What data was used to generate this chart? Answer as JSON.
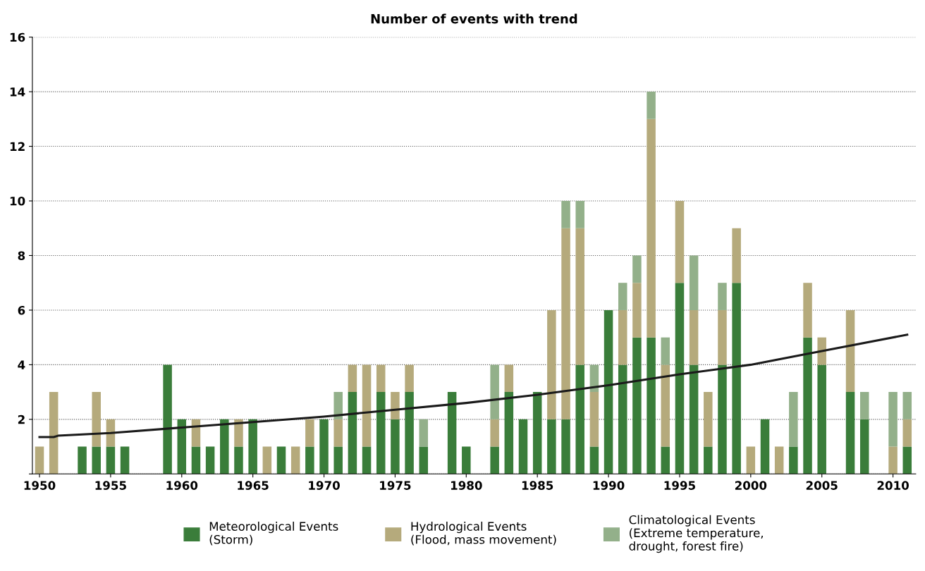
{
  "chart_data": {
    "type": "bar",
    "title": "Number of events with trend",
    "stacked": true,
    "x": [
      1950,
      1951,
      1952,
      1953,
      1954,
      1955,
      1956,
      1957,
      1958,
      1959,
      1960,
      1961,
      1962,
      1963,
      1964,
      1965,
      1966,
      1967,
      1968,
      1969,
      1970,
      1971,
      1972,
      1973,
      1974,
      1975,
      1976,
      1977,
      1978,
      1979,
      1980,
      1981,
      1982,
      1983,
      1984,
      1985,
      1986,
      1987,
      1988,
      1989,
      1990,
      1991,
      1992,
      1993,
      1994,
      1995,
      1996,
      1997,
      1998,
      1999,
      2000,
      2001,
      2002,
      2003,
      2004,
      2005,
      2006,
      2007,
      2008,
      2009,
      2010,
      2011
    ],
    "series": [
      {
        "name": "Meteorological Events\n(Storm)",
        "color": "#3a7d3a",
        "values": [
          0,
          0,
          0,
          1,
          1,
          1,
          1,
          0,
          0,
          4,
          2,
          1,
          1,
          2,
          1,
          2,
          0,
          1,
          0,
          1,
          2,
          1,
          3,
          1,
          3,
          2,
          3,
          1,
          0,
          3,
          1,
          0,
          1,
          3,
          2,
          3,
          2,
          2,
          4,
          1,
          6,
          4,
          5,
          5,
          1,
          7,
          4,
          1,
          4,
          7,
          0,
          2,
          0,
          1,
          5,
          4,
          0,
          3,
          2,
          0,
          0,
          1
        ]
      },
      {
        "name": "Hydrological Events\n(Flood, mass movement)",
        "color": "#b5aa7c",
        "values": [
          1,
          3,
          0,
          0,
          2,
          1,
          0,
          0,
          0,
          0,
          0,
          1,
          0,
          0,
          1,
          0,
          1,
          0,
          1,
          1,
          0,
          1,
          1,
          3,
          1,
          1,
          1,
          0,
          0,
          0,
          0,
          0,
          1,
          1,
          0,
          0,
          4,
          7,
          5,
          2,
          0,
          2,
          2,
          8,
          3,
          3,
          2,
          2,
          2,
          2,
          1,
          0,
          1,
          0,
          2,
          1,
          0,
          3,
          0,
          0,
          1,
          1
        ]
      },
      {
        "name": "Climatological Events\n(Extreme temperature,\ndrought, forest fire)",
        "color": "#93b08a",
        "values": [
          0,
          0,
          0,
          0,
          0,
          0,
          0,
          0,
          0,
          0,
          0,
          0,
          0,
          0,
          0,
          0,
          0,
          0,
          0,
          0,
          0,
          1,
          0,
          0,
          0,
          0,
          0,
          1,
          0,
          0,
          0,
          0,
          2,
          0,
          0,
          0,
          0,
          1,
          1,
          1,
          0,
          1,
          1,
          1,
          1,
          0,
          2,
          0,
          1,
          0,
          0,
          0,
          0,
          2,
          0,
          0,
          0,
          0,
          1,
          0,
          2,
          1
        ]
      },
      {
        "type": "line",
        "color": "#1a1a1a",
        "x": [
          1950,
          1951,
          1951.3,
          1955,
          1960,
          1965,
          1970,
          1975,
          1980,
          1985,
          1990,
          1995,
          2000,
          2005,
          2011
        ],
        "values": [
          1.35,
          1.35,
          1.4,
          1.5,
          1.7,
          1.9,
          2.1,
          2.35,
          2.6,
          2.9,
          3.25,
          3.65,
          4.0,
          4.5,
          5.1
        ]
      }
    ],
    "xlim": [
      1949.5,
      2011.6
    ],
    "xticks": [
      1950,
      1955,
      1960,
      1965,
      1970,
      1975,
      1980,
      1985,
      1990,
      1995,
      2000,
      2005,
      2010
    ],
    "ylim": [
      0,
      16
    ],
    "yticks": [
      {
        "value": 0,
        "label": null
      },
      2,
      4,
      6,
      8,
      10,
      12,
      14,
      16
    ],
    "grid": "y",
    "legend": "bottom",
    "marker": "none",
    "line_style": "solid"
  }
}
